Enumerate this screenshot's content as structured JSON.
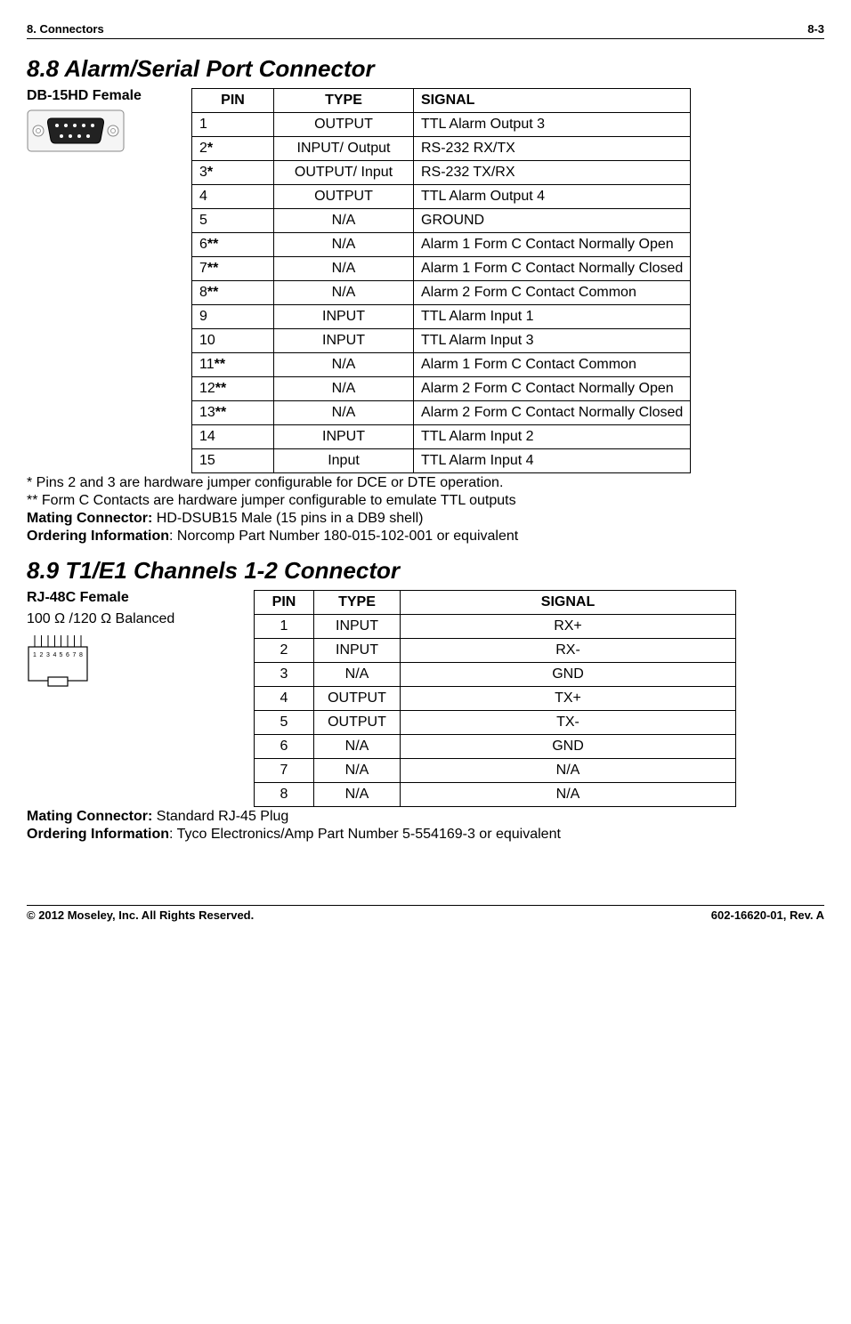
{
  "header": {
    "left": "8. Connectors",
    "right": "8-3"
  },
  "footer": {
    "left": "© 2012 Moseley, Inc.  All Rights Reserved.",
    "right": "602-16620-01, Rev. A"
  },
  "section88": {
    "heading": "8.8  Alarm/Serial Port Connector",
    "connector_label": "DB-15HD Female",
    "table": {
      "headers": [
        "PIN",
        "TYPE",
        "SIGNAL"
      ],
      "rows": [
        {
          "pin": "1",
          "suffix": "",
          "type": "OUTPUT",
          "signal": "TTL Alarm Output 3"
        },
        {
          "pin": "2",
          "suffix": "*",
          "type": "INPUT/ Output",
          "signal": "RS-232 RX/TX"
        },
        {
          "pin": "3",
          "suffix": "*",
          "type": "OUTPUT/ Input",
          "signal": "RS-232 TX/RX"
        },
        {
          "pin": "4",
          "suffix": "",
          "type": "OUTPUT",
          "signal": "TTL Alarm Output 4"
        },
        {
          "pin": "5",
          "suffix": "",
          "type": "N/A",
          "signal": "GROUND"
        },
        {
          "pin": "6",
          "suffix": "**",
          "type": "N/A",
          "signal": "Alarm 1 Form C Contact Normally Open"
        },
        {
          "pin": "7",
          "suffix": "**",
          "type": "N/A",
          "signal": "Alarm 1 Form C Contact Normally Closed"
        },
        {
          "pin": "8",
          "suffix": "**",
          "type": "N/A",
          "signal": "Alarm 2 Form C Contact Common"
        },
        {
          "pin": "9",
          "suffix": "",
          "type": "INPUT",
          "signal": "TTL Alarm Input 1"
        },
        {
          "pin": "10",
          "suffix": "",
          "type": "INPUT",
          "signal": "TTL Alarm Input 3"
        },
        {
          "pin": "11",
          "suffix": "**",
          "type": "N/A",
          "signal": "Alarm 1 Form C Contact Common"
        },
        {
          "pin": "12",
          "suffix": "**",
          "type": "N/A",
          "signal": "Alarm 2 Form C Contact Normally Open"
        },
        {
          "pin": "13",
          "suffix": "**",
          "type": "N/A",
          "signal": "Alarm 2 Form C Contact Normally Closed"
        },
        {
          "pin": "14",
          "suffix": "",
          "type": "INPUT",
          "signal": "TTL Alarm Input 2"
        },
        {
          "pin": "15",
          "suffix": "",
          "type": "Input",
          "signal": "TTL Alarm Input 4"
        }
      ]
    },
    "note1": "* Pins 2 and 3 are hardware jumper configurable for DCE or DTE operation.",
    "note2": "** Form C Contacts are hardware jumper configurable to emulate TTL outputs",
    "mating_label": "Mating Connector:",
    "mating_value": " HD-DSUB15 Male (15 pins in a DB9 shell)",
    "ordering_label": "Ordering Information",
    "ordering_value": ": Norcomp Part Number 180-015-102-001 or equivalent"
  },
  "section89": {
    "heading": "8.9  T1/E1 Channels 1-2 Connector",
    "connector_label": "RJ-48C Female",
    "impedance": "100 Ω /120 Ω Balanced",
    "table": {
      "headers": [
        "PIN",
        "TYPE",
        "SIGNAL"
      ],
      "rows": [
        {
          "pin": "1",
          "type": "INPUT",
          "signal": "RX+"
        },
        {
          "pin": "2",
          "type": "INPUT",
          "signal": "RX-"
        },
        {
          "pin": "3",
          "type": "N/A",
          "signal": "GND"
        },
        {
          "pin": "4",
          "type": "OUTPUT",
          "signal": "TX+"
        },
        {
          "pin": "5",
          "type": "OUTPUT",
          "signal": "TX-"
        },
        {
          "pin": "6",
          "type": "N/A",
          "signal": "GND"
        },
        {
          "pin": "7",
          "type": "N/A",
          "signal": "N/A"
        },
        {
          "pin": "8",
          "type": "N/A",
          "signal": "N/A"
        }
      ]
    },
    "mating_label": "Mating Connector:",
    "mating_value": " Standard RJ-45 Plug",
    "ordering_label": "Ordering Information",
    "ordering_value": ": Tyco Electronics/Amp Part Number 5-554169-3 or equivalent"
  }
}
